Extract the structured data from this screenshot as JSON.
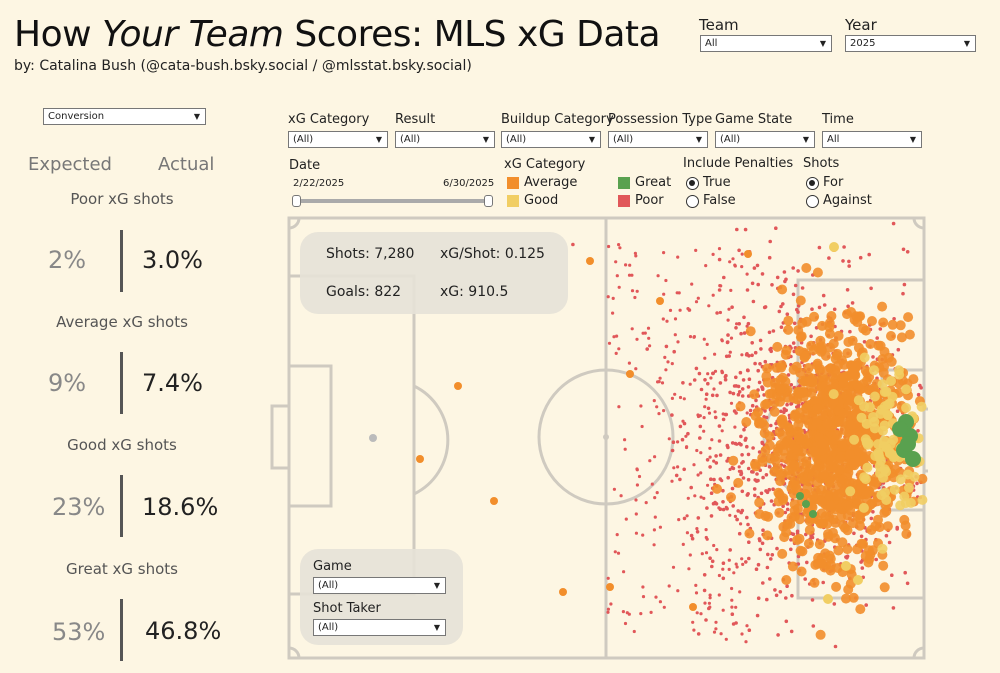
{
  "header": {
    "title_pre": "How",
    "title_em": "Your Team",
    "title_post": "Scores: MLS xG Data",
    "byline": "by: Catalina Bush (@cata-bush.bsky.social / @mlsstat.bsky.social)"
  },
  "top_filters": {
    "team": {
      "label": "Team",
      "value": "All"
    },
    "year": {
      "label": "Year",
      "value": "2025"
    }
  },
  "metric_select": {
    "value": "Conversion"
  },
  "left_panel": {
    "expected_label": "Expected",
    "actual_label": "Actual",
    "rows": [
      {
        "title": "Poor xG shots",
        "expected": "2%",
        "actual": "3.0%"
      },
      {
        "title": "Average xG shots",
        "expected": "9%",
        "actual": "7.4%"
      },
      {
        "title": "Good xG shots",
        "expected": "23%",
        "actual": "18.6%"
      },
      {
        "title": "Great xG shots",
        "expected": "53%",
        "actual": "46.8%"
      }
    ]
  },
  "filters": {
    "xg_category": {
      "label": "xG Category",
      "value": "(All)"
    },
    "result": {
      "label": "Result",
      "value": "(All)"
    },
    "buildup": {
      "label": "Buildup Category",
      "value": "(All)"
    },
    "possession": {
      "label": "Possession Type",
      "value": "(All)"
    },
    "game_state": {
      "label": "Game State",
      "value": "(All)"
    },
    "time": {
      "label": "Time",
      "value": "All"
    }
  },
  "date": {
    "label": "Date",
    "start": "2/22/2025",
    "end": "6/30/2025"
  },
  "legend": {
    "title": "xG Category",
    "items": [
      {
        "label": "Average",
        "color": "#f28e2b"
      },
      {
        "label": "Good",
        "color": "#f1ce63"
      },
      {
        "label": "Great",
        "color": "#59a14f"
      },
      {
        "label": "Poor",
        "color": "#e15759"
      }
    ]
  },
  "penalties": {
    "label": "Include Penalties",
    "options": [
      "True",
      "False"
    ],
    "selected": "True"
  },
  "shots": {
    "label": "Shots",
    "options": [
      "For",
      "Against"
    ],
    "selected": "For"
  },
  "stats": {
    "shots": "Shots: 7,280",
    "xg_per_shot": "xG/Shot: 0.125",
    "goals": "Goals: 822",
    "xg": "xG: 910.5"
  },
  "pitch_filters": {
    "game": {
      "label": "Game",
      "value": "(All)"
    },
    "shot_taker": {
      "label": "Shot Taker",
      "value": "(All)"
    }
  },
  "colors": {
    "background": "#fdf6e3",
    "pitch_lines": "#cfcac0",
    "average": "#f28e2b",
    "good": "#f1ce63",
    "great": "#59a14f",
    "poor": "#e15759"
  }
}
